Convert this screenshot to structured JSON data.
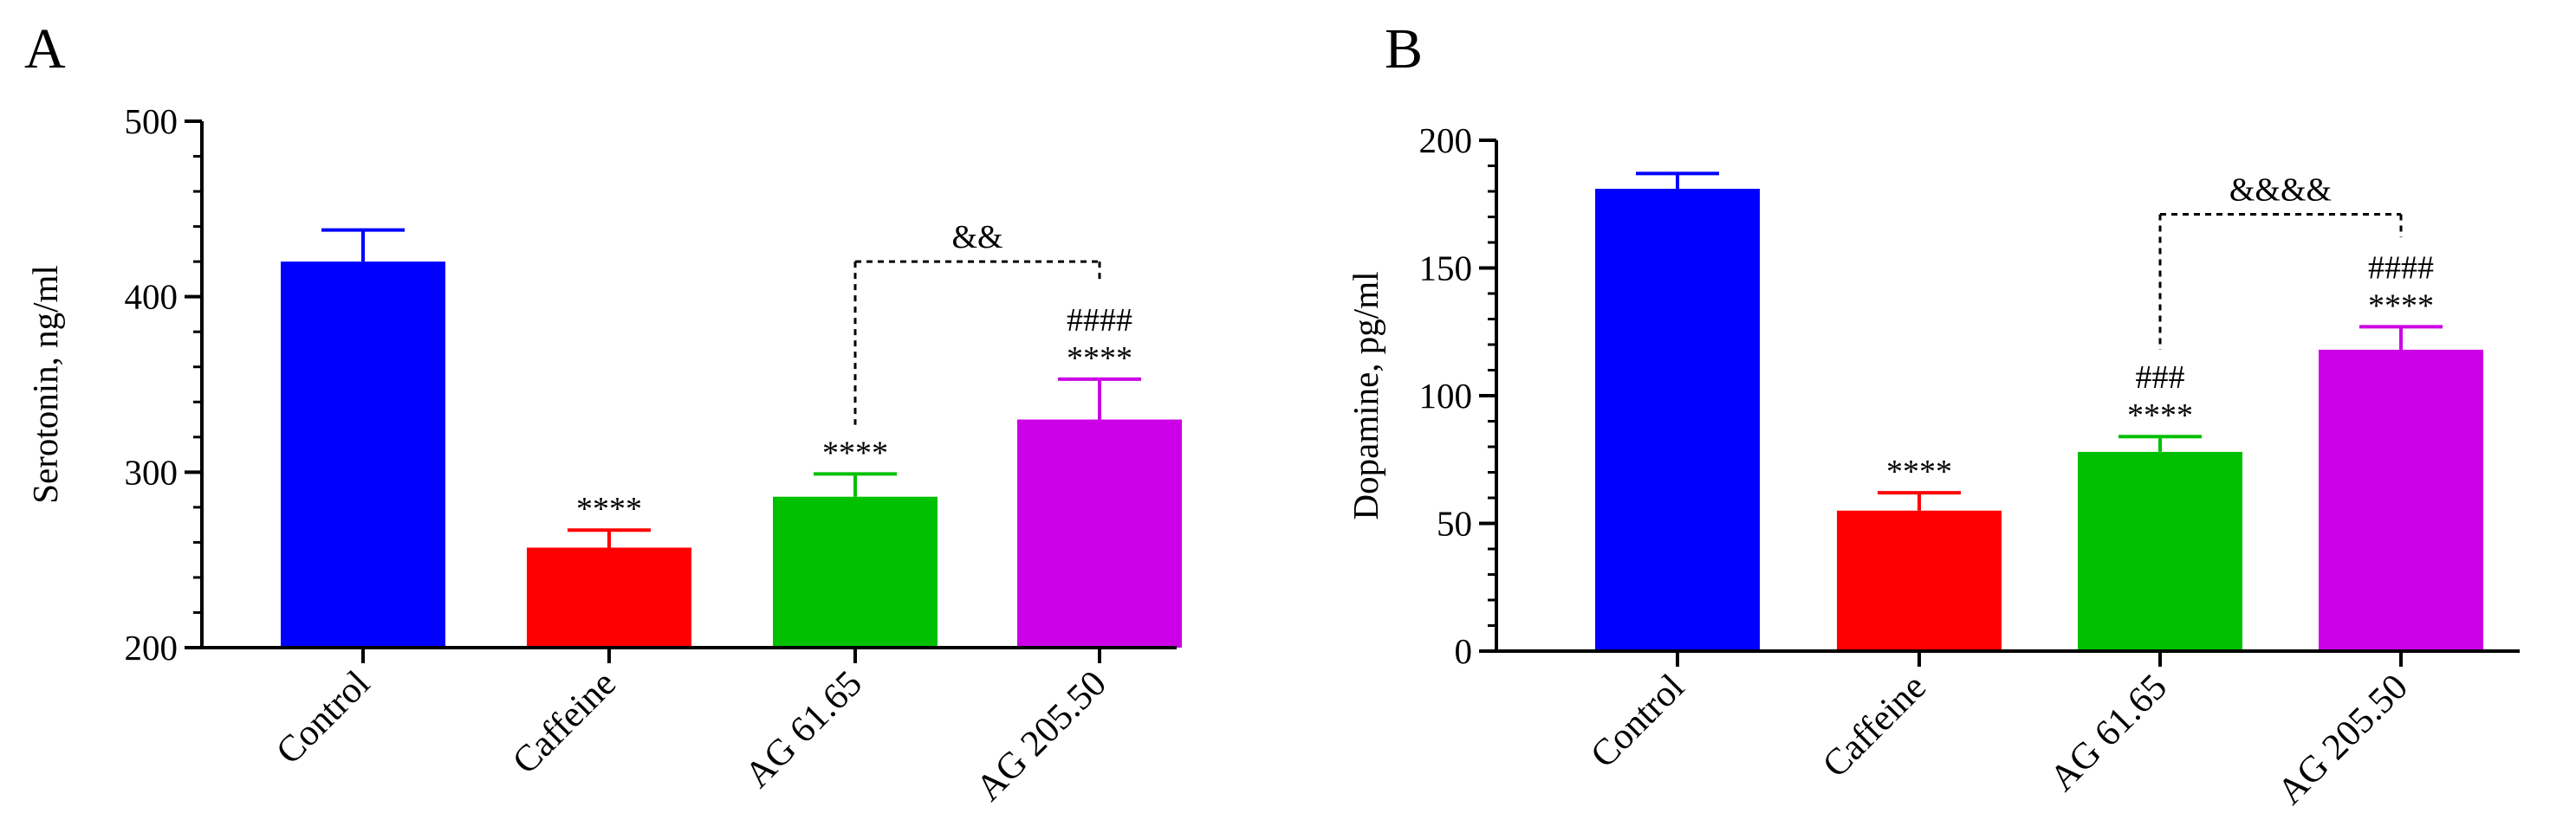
{
  "figure": {
    "background": "#ffffff"
  },
  "chart_data": [
    {
      "panel": "A",
      "type": "bar",
      "title": "",
      "xlabel": "",
      "ylabel": "Serotonin, ng/ml",
      "ylim": [
        200,
        500
      ],
      "yticks": [
        200,
        300,
        400,
        500
      ],
      "yminor_step": 20,
      "categories": [
        "Control",
        "Caffeine",
        "AG 61.65",
        "AG 205.50"
      ],
      "values": [
        420,
        257,
        286,
        330
      ],
      "errors": [
        18,
        10,
        13,
        23
      ],
      "colors": [
        "#0000ff",
        "#ff0000",
        "#00c000",
        "#cc00e6"
      ],
      "significance_markers": [
        {
          "category": "Caffeine",
          "lines": [
            "****"
          ]
        },
        {
          "category": "AG 61.65",
          "lines": [
            "****"
          ]
        },
        {
          "category": "AG 205.50",
          "lines": [
            "####",
            "****"
          ]
        }
      ],
      "brackets": [
        {
          "from": "AG 61.65",
          "to": "AG 205.50",
          "label": "&&",
          "level": 420,
          "from_end": 327,
          "to_end": 410
        }
      ]
    },
    {
      "panel": "B",
      "type": "bar",
      "title": "",
      "xlabel": "",
      "ylabel": "Dopamine, pg/ml",
      "ylim": [
        0,
        200
      ],
      "yticks": [
        0,
        50,
        100,
        150,
        200
      ],
      "yminor_step": 10,
      "categories": [
        "Control",
        "Caffeine",
        "AG 61.65",
        "AG 205.50"
      ],
      "values": [
        181,
        55,
        78,
        118
      ],
      "errors": [
        6,
        7,
        6,
        9
      ],
      "colors": [
        "#0000ff",
        "#ff0000",
        "#00c000",
        "#cc00e6"
      ],
      "significance_markers": [
        {
          "category": "Caffeine",
          "lines": [
            "****"
          ]
        },
        {
          "category": "AG 61.65",
          "lines": [
            "###",
            "****"
          ]
        },
        {
          "category": "AG 205.50",
          "lines": [
            "####",
            "****"
          ]
        }
      ],
      "brackets": [
        {
          "from": "AG 61.65",
          "to": "AG 205.50",
          "label": "&&&&",
          "level": 171,
          "from_end": 118,
          "to_end": 162
        }
      ]
    }
  ]
}
